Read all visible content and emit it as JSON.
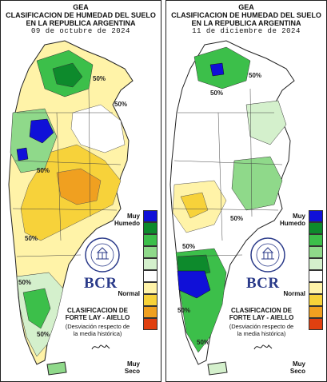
{
  "panels": [
    {
      "org": "GEA",
      "title_line1": "CLASIFICACION DE HUMEDAD DEL SUELO",
      "title_line2": "EN LA REPUBLICA ARGENTINA",
      "date": "09 de octubre de 2024",
      "contour_labels": [
        "50%",
        "50%",
        "50%",
        "50%",
        "50%",
        "50%"
      ]
    },
    {
      "org": "GEA",
      "title_line1": "CLASIFICACION DE HUMEDAD DEL SUELO",
      "title_line2": "EN LA REPUBLICA ARGENTINA",
      "date": "11 de diciembre de 2024",
      "contour_labels": [
        "50%",
        "50%",
        "50%",
        "50%",
        "50%",
        "50%"
      ]
    }
  ],
  "legend": {
    "top_label_1": "Muy",
    "top_label_2": "Humedo",
    "middle_label": "Normal",
    "bottom_label_1": "Muy",
    "bottom_label_2": "Seco",
    "colors": [
      "#1010d8",
      "#0d8a2c",
      "#3cbf4a",
      "#8fd98a",
      "#d4f0cc",
      "#ffffff",
      "#fff3a8",
      "#f7d23a",
      "#f0a020",
      "#e04010"
    ]
  },
  "branding": {
    "logo_text": "BCR",
    "seal_text": "BOLSA DE COMERCIO DE ROSARIO",
    "method_line1": "CLASIFICACION DE",
    "method_line2": "FORTE LAY - AIELLO",
    "note_line1": "(Desviación respecto de",
    "note_line2": "la media histórica)"
  }
}
